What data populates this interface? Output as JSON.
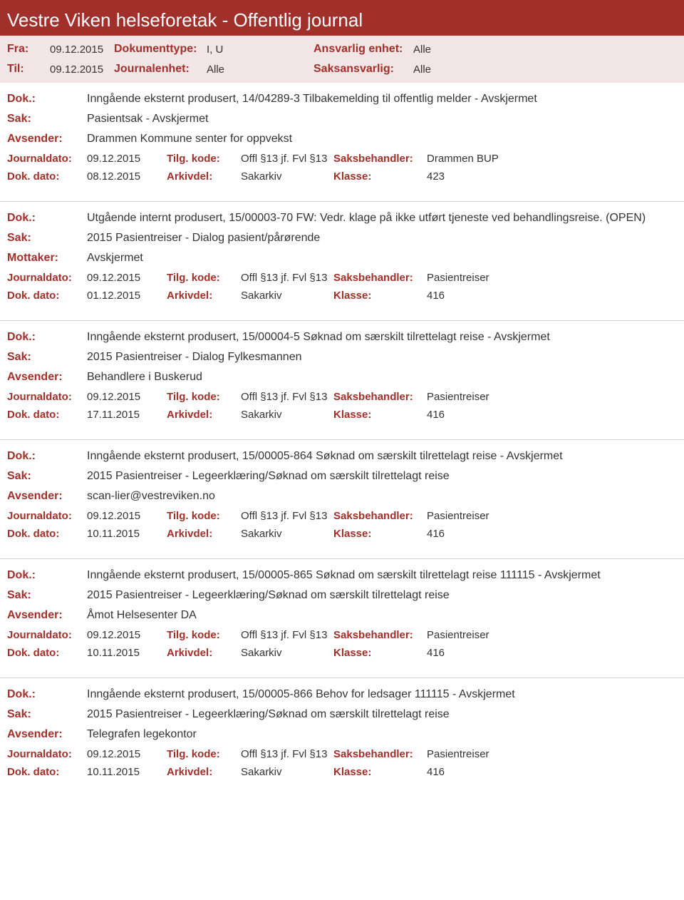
{
  "header": {
    "title": "Vestre Viken helseforetak - Offentlig journal"
  },
  "filters": {
    "fra_label": "Fra:",
    "fra_value": "09.12.2015",
    "til_label": "Til:",
    "til_value": "09.12.2015",
    "doktype_label": "Dokumenttype:",
    "doktype_value": "I, U",
    "journalenhet_label": "Journalenhet:",
    "journalenhet_value": "Alle",
    "ansvarlig_label": "Ansvarlig enhet:",
    "ansvarlig_value": "Alle",
    "saksansvarlig_label": "Saksansvarlig:",
    "saksansvarlig_value": "Alle"
  },
  "labels": {
    "dok": "Dok.:",
    "sak": "Sak:",
    "avsender": "Avsender:",
    "mottaker": "Mottaker:",
    "journaldato": "Journaldato:",
    "tilgkode": "Tilg. kode:",
    "saksbehandler": "Saksbehandler:",
    "dokdato": "Dok. dato:",
    "arkivdel": "Arkivdel:",
    "klasse": "Klasse:"
  },
  "entries": [
    {
      "dok": "Inngående eksternt produsert, 14/04289-3 Tilbakemelding til offentlig melder - Avskjermet",
      "sak": "Pasientsak - Avskjermet",
      "party_label": "Avsender:",
      "party": "Drammen Kommune  senter for oppvekst",
      "journaldato": "09.12.2015",
      "tilgkode": "Offl §13 jf. Fvl §13",
      "saksbehandler": "Drammen BUP",
      "dokdato": "08.12.2015",
      "arkivdel": "Sakarkiv",
      "klasse": "423"
    },
    {
      "dok": "Utgående internt produsert, 15/00003-70 FW: Vedr. klage på ikke utført tjeneste ved behandlingsreise. (OPEN)",
      "sak": "2015 Pasientreiser - Dialog pasient/pårørende",
      "party_label": "Mottaker:",
      "party": "Avskjermet",
      "journaldato": "09.12.2015",
      "tilgkode": "Offl §13 jf. Fvl §13",
      "saksbehandler": "Pasientreiser",
      "dokdato": "01.12.2015",
      "arkivdel": "Sakarkiv",
      "klasse": "416"
    },
    {
      "dok": "Inngående eksternt produsert, 15/00004-5 Søknad om særskilt tilrettelagt reise - Avskjermet",
      "sak": "2015 Pasientreiser - Dialog Fylkesmannen",
      "party_label": "Avsender:",
      "party": "Behandlere i Buskerud",
      "journaldato": "09.12.2015",
      "tilgkode": "Offl §13 jf. Fvl §13",
      "saksbehandler": "Pasientreiser",
      "dokdato": "17.11.2015",
      "arkivdel": "Sakarkiv",
      "klasse": "416"
    },
    {
      "dok": "Inngående eksternt produsert, 15/00005-864 Søknad om særskilt tilrettelagt reise - Avskjermet",
      "sak": "2015 Pasientreiser - Legeerklæring/Søknad om særskilt tilrettelagt reise",
      "party_label": "Avsender:",
      "party": "scan-lier@vestreviken.no",
      "journaldato": "09.12.2015",
      "tilgkode": "Offl §13 jf. Fvl §13",
      "saksbehandler": "Pasientreiser",
      "dokdato": "10.11.2015",
      "arkivdel": "Sakarkiv",
      "klasse": "416"
    },
    {
      "dok": "Inngående eksternt produsert, 15/00005-865 Søknad om særskilt tilrettelagt reise 111115 - Avskjermet",
      "sak": "2015 Pasientreiser - Legeerklæring/Søknad om særskilt tilrettelagt reise",
      "party_label": "Avsender:",
      "party": "Åmot Helsesenter DA",
      "journaldato": "09.12.2015",
      "tilgkode": "Offl §13 jf. Fvl §13",
      "saksbehandler": "Pasientreiser",
      "dokdato": "10.11.2015",
      "arkivdel": "Sakarkiv",
      "klasse": "416"
    },
    {
      "dok": "Inngående eksternt produsert, 15/00005-866 Behov for ledsager 111115 - Avskjermet",
      "sak": "2015 Pasientreiser - Legeerklæring/Søknad om særskilt tilrettelagt reise",
      "party_label": "Avsender:",
      "party": "Telegrafen legekontor",
      "journaldato": "09.12.2015",
      "tilgkode": "Offl §13 jf. Fvl §13",
      "saksbehandler": "Pasientreiser",
      "dokdato": "10.11.2015",
      "arkivdel": "Sakarkiv",
      "klasse": "416"
    }
  ]
}
